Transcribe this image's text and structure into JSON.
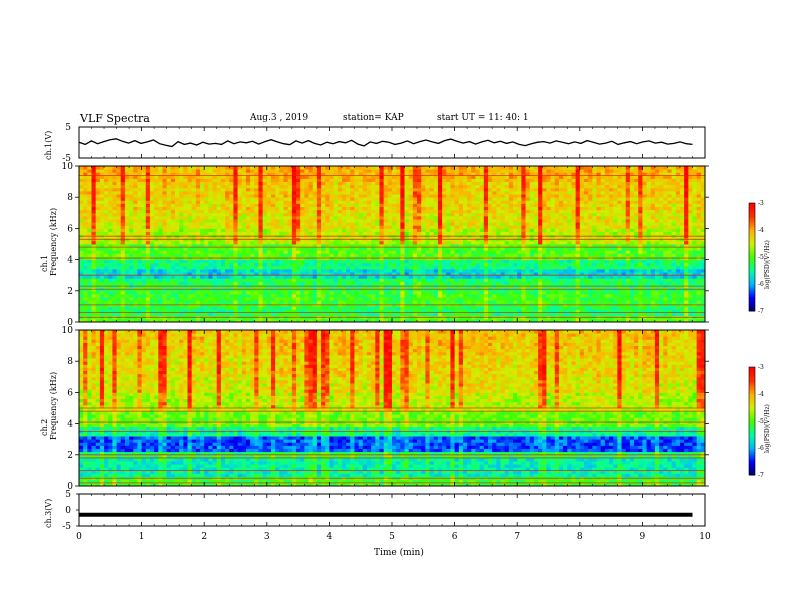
{
  "header": {
    "title": "VLF Spectra",
    "date": "Aug.3 , 2019",
    "station": "station= KAP",
    "start": "start UT = 11: 40: 1"
  },
  "chart_data": [
    {
      "type": "line",
      "name": "ch1-waveform",
      "ylabel": "ch.1(V)",
      "ylim": [
        -5,
        5
      ],
      "yticks": [
        "5",
        "-5"
      ],
      "xlim": [
        0,
        10
      ],
      "values": [
        0.1,
        -0.6,
        0.5,
        -0.4,
        0.3,
        0.9,
        1.2,
        0.4,
        -0.2,
        0.6,
        -0.3,
        0.2,
        0.8,
        -0.4,
        -0.9,
        -1.3,
        0.3,
        -0.6,
        -0.2,
        -0.8,
        0.1,
        -0.5,
        -0.3,
        -0.6,
        0.5,
        -0.4,
        0.2,
        -0.1,
        0.4,
        -0.5,
        0.3,
        0.9,
        0.2,
        -0.4,
        -0.7,
        0.5,
        -0.2,
        0.6,
        -0.3,
        -0.8,
        0.1,
        -0.4,
        0.3,
        -0.1,
        0.7,
        -0.5,
        -1.1,
        0.2,
        -0.3,
        0.4,
        0.1,
        -0.6,
        -0.2,
        0.5,
        -0.4,
        0.3,
        0.8,
        0.2,
        -0.3,
        0.6,
        1.1,
        0.4,
        -0.2,
        0.3,
        -0.5,
        0.2,
        0.7,
        -0.1,
        0.4,
        -0.3,
        0.2,
        -0.6,
        -1.0,
        -0.4,
        0.1,
        0.3,
        -0.2,
        0.5,
        0.1,
        -0.4,
        0.2,
        -0.3,
        0.6,
        0.1,
        -0.5,
        -0.2,
        0.4,
        -0.6,
        -0.1,
        0.3,
        -0.4,
        0.2,
        0.5,
        -0.2,
        0.1,
        -0.5,
        -0.3,
        0.2,
        -0.4,
        -0.6
      ]
    },
    {
      "type": "heatmap",
      "name": "ch1-spectrogram",
      "ylabel": "ch.1",
      "ylabel2": "Frequency (kHz)",
      "ylim": [
        0,
        10
      ],
      "yticks": [
        "0",
        "2",
        "4",
        "6",
        "8",
        "10"
      ],
      "xlim": [
        0,
        10
      ],
      "colorbar": {
        "label": "log(PSD)(V²/Hz)",
        "range": [
          -7,
          -3
        ],
        "ticks": [
          "-3",
          "-4",
          "-5",
          "-6",
          "-7"
        ]
      },
      "bands": [
        {
          "from": 0,
          "to": 0.5,
          "level": -5.0
        },
        {
          "from": 0.5,
          "to": 1.0,
          "level": -5.3
        },
        {
          "from": 1.0,
          "to": 2.0,
          "level": -5.1
        },
        {
          "from": 2.0,
          "to": 2.8,
          "level": -5.3
        },
        {
          "from": 2.8,
          "to": 3.4,
          "level": -5.8
        },
        {
          "from": 3.4,
          "to": 4.0,
          "level": -5.4
        },
        {
          "from": 4.0,
          "to": 5.0,
          "level": -5.0
        },
        {
          "from": 5.0,
          "to": 6.0,
          "level": -4.6
        },
        {
          "from": 6.0,
          "to": 7.0,
          "level": -4.4
        },
        {
          "from": 7.0,
          "to": 8.0,
          "level": -4.3
        },
        {
          "from": 8.0,
          "to": 9.0,
          "level": -4.2
        },
        {
          "from": 9.0,
          "to": 10.0,
          "level": -4.1
        }
      ],
      "lines_khz": [
        0.3,
        0.6,
        1.1,
        2.1,
        2.3,
        3.0,
        4.1,
        4.8,
        5.3,
        5.5,
        9.4
      ]
    },
    {
      "type": "heatmap",
      "name": "ch2-spectrogram",
      "ylabel": "ch.2",
      "ylabel2": "Frequency (kHz)",
      "ylim": [
        0,
        10
      ],
      "yticks": [
        "0",
        "2",
        "4",
        "6",
        "8",
        "10"
      ],
      "xlim": [
        0,
        10
      ],
      "colorbar": {
        "label": "log(PSD)(V²/Hz)",
        "range": [
          -7,
          -3
        ],
        "ticks": [
          "-3",
          "-4",
          "-5",
          "-6",
          "-7"
        ]
      },
      "bands": [
        {
          "from": 0,
          "to": 0.6,
          "level": -5.1
        },
        {
          "from": 0.6,
          "to": 1.8,
          "level": -5.6
        },
        {
          "from": 1.8,
          "to": 2.2,
          "level": -5.3
        },
        {
          "from": 2.2,
          "to": 3.2,
          "level": -6.3
        },
        {
          "from": 3.2,
          "to": 3.8,
          "level": -5.5
        },
        {
          "from": 3.8,
          "to": 4.8,
          "level": -4.9
        },
        {
          "from": 4.8,
          "to": 6.0,
          "level": -4.6
        },
        {
          "from": 6.0,
          "to": 7.0,
          "level": -4.4
        },
        {
          "from": 7.0,
          "to": 8.5,
          "level": -4.3
        },
        {
          "from": 8.5,
          "to": 10.0,
          "level": -4.2
        }
      ],
      "lines_khz": [
        0.2,
        0.5,
        1.0,
        1.8,
        2.0,
        3.5,
        4.1,
        4.8,
        5.0
      ]
    },
    {
      "type": "line",
      "name": "ch3-waveform",
      "ylabel": "ch.3(V)",
      "ylim": [
        -5,
        5
      ],
      "yticks": [
        "5",
        "0",
        "-5"
      ],
      "xlim": [
        0,
        10
      ],
      "xlabel": "Time (min)",
      "xticks": [
        "0",
        "1",
        "2",
        "3",
        "4",
        "5",
        "6",
        "7",
        "8",
        "9",
        "10"
      ],
      "values": [
        -1.5,
        -1.5
      ]
    }
  ],
  "colors": {
    "psd_scale": [
      "#000060",
      "#0000ff",
      "#00b4ff",
      "#00ffa0",
      "#40ff00",
      "#d0f000",
      "#ffb000",
      "#ff3000",
      "#ff0000",
      "#ffffff"
    ]
  }
}
